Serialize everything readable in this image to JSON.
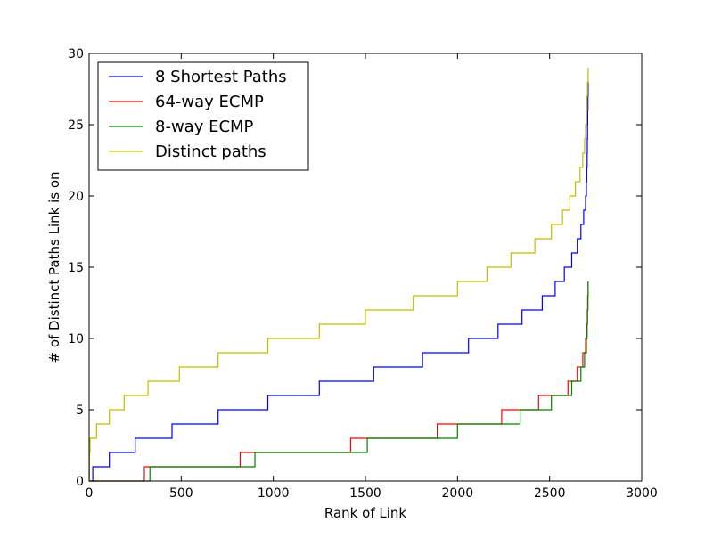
{
  "chart_data": {
    "type": "line",
    "title": "",
    "xlabel": "Rank of Link",
    "ylabel": "# of Distinct Paths Link is on",
    "xlim": [
      0,
      3000
    ],
    "ylim": [
      0,
      30
    ],
    "x_ticks": [
      0,
      500,
      1000,
      1500,
      2000,
      2500,
      3000
    ],
    "y_ticks": [
      0,
      5,
      10,
      15,
      20,
      25,
      30
    ],
    "grid": false,
    "legend_position": "top-left",
    "series": [
      {
        "name": "8 Shortest Paths",
        "color": "#0000ff",
        "step_points": [
          [
            0,
            0
          ],
          [
            20,
            1
          ],
          [
            110,
            2
          ],
          [
            250,
            3
          ],
          [
            450,
            4
          ],
          [
            700,
            5
          ],
          [
            970,
            6
          ],
          [
            1250,
            7
          ],
          [
            1545,
            8
          ],
          [
            1810,
            9
          ],
          [
            2060,
            10
          ],
          [
            2220,
            11
          ],
          [
            2350,
            12
          ],
          [
            2460,
            13
          ],
          [
            2530,
            14
          ],
          [
            2580,
            15
          ],
          [
            2620,
            16
          ],
          [
            2650,
            17
          ],
          [
            2670,
            18
          ],
          [
            2685,
            19
          ],
          [
            2695,
            20
          ],
          [
            2700,
            21
          ],
          [
            2702,
            22
          ],
          [
            2704,
            23
          ],
          [
            2705,
            24
          ],
          [
            2706,
            25
          ],
          [
            2707,
            26
          ],
          [
            2708,
            27
          ],
          [
            2709,
            28
          ]
        ]
      },
      {
        "name": "64-way ECMP",
        "color": "#ff0000",
        "step_points": [
          [
            0,
            0
          ],
          [
            300,
            1
          ],
          [
            820,
            2
          ],
          [
            1420,
            3
          ],
          [
            1890,
            4
          ],
          [
            2240,
            5
          ],
          [
            2440,
            6
          ],
          [
            2600,
            7
          ],
          [
            2650,
            8
          ],
          [
            2680,
            9
          ],
          [
            2695,
            10
          ],
          [
            2702,
            11
          ],
          [
            2705,
            12
          ],
          [
            2707,
            13
          ],
          [
            2709,
            14
          ]
        ]
      },
      {
        "name": "8-way ECMP",
        "color": "#008000",
        "step_points": [
          [
            0,
            0
          ],
          [
            330,
            1
          ],
          [
            900,
            2
          ],
          [
            1510,
            3
          ],
          [
            2000,
            4
          ],
          [
            2340,
            5
          ],
          [
            2510,
            6
          ],
          [
            2620,
            7
          ],
          [
            2670,
            8
          ],
          [
            2690,
            9
          ],
          [
            2700,
            10
          ],
          [
            2704,
            11
          ],
          [
            2706,
            12
          ],
          [
            2708,
            13
          ],
          [
            2709,
            14
          ]
        ]
      },
      {
        "name": "Distinct paths",
        "color": "#bfbf00",
        "step_points": [
          [
            0,
            0
          ],
          [
            2,
            2
          ],
          [
            5,
            3
          ],
          [
            40,
            4
          ],
          [
            110,
            5
          ],
          [
            190,
            6
          ],
          [
            320,
            7
          ],
          [
            490,
            8
          ],
          [
            700,
            9
          ],
          [
            970,
            10
          ],
          [
            1250,
            11
          ],
          [
            1500,
            12
          ],
          [
            1760,
            13
          ],
          [
            2000,
            14
          ],
          [
            2160,
            15
          ],
          [
            2290,
            16
          ],
          [
            2420,
            17
          ],
          [
            2510,
            18
          ],
          [
            2570,
            19
          ],
          [
            2610,
            20
          ],
          [
            2640,
            21
          ],
          [
            2665,
            22
          ],
          [
            2680,
            23
          ],
          [
            2690,
            24
          ],
          [
            2695,
            25
          ],
          [
            2700,
            26
          ],
          [
            2703,
            27
          ],
          [
            2706,
            28
          ],
          [
            2709,
            29
          ]
        ]
      }
    ]
  }
}
